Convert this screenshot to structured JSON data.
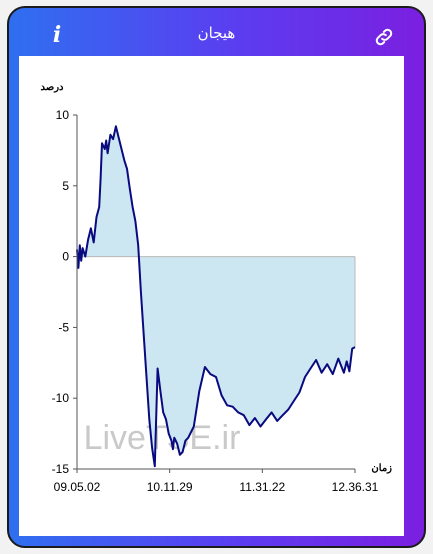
{
  "header": {
    "title": "هیجان",
    "info_label": "i",
    "info_icon": "info-icon",
    "link_icon": "link-icon"
  },
  "watermark": "LiveTSE.ir",
  "chart_data": {
    "type": "area",
    "ylabel": "درصد",
    "xlabel": "زمان",
    "ylim": [
      -15,
      10
    ],
    "yticks": [
      10,
      5,
      0,
      -5,
      -10,
      -15
    ],
    "xtick_labels": [
      "09.05.02",
      "10.11.29",
      "11.31.22",
      "12.36.31"
    ],
    "fill_color": "#cce7f2",
    "line_color": "#0a0a80",
    "grid": false,
    "series": [
      {
        "x": [
          0.0,
          0.005,
          0.01,
          0.015,
          0.02,
          0.03,
          0.04,
          0.05,
          0.055,
          0.06,
          0.07,
          0.08,
          0.085,
          0.09,
          0.1,
          0.105,
          0.11,
          0.12,
          0.13,
          0.14,
          0.15,
          0.16,
          0.17,
          0.18,
          0.19,
          0.2,
          0.21,
          0.22,
          0.23,
          0.24,
          0.25,
          0.26,
          0.27,
          0.28,
          0.29,
          0.3,
          0.31,
          0.32,
          0.33,
          0.34,
          0.345,
          0.35,
          0.36,
          0.37,
          0.38,
          0.39,
          0.4,
          0.42,
          0.44,
          0.46,
          0.48,
          0.5,
          0.52,
          0.54,
          0.56,
          0.58,
          0.6,
          0.62,
          0.64,
          0.66,
          0.68,
          0.7,
          0.72,
          0.74,
          0.76,
          0.78,
          0.8,
          0.82,
          0.84,
          0.86,
          0.88,
          0.9,
          0.92,
          0.94,
          0.96,
          0.97,
          0.98,
          0.99,
          1.0
        ],
        "y": [
          0.5,
          -0.8,
          0.8,
          -0.3,
          0.6,
          0.0,
          1.2,
          2.0,
          1.5,
          1.0,
          2.8,
          3.5,
          5.5,
          8.0,
          7.6,
          8.2,
          7.3,
          8.6,
          8.3,
          9.2,
          8.4,
          7.6,
          6.8,
          6.2,
          4.8,
          3.5,
          2.5,
          0.8,
          -2.5,
          -5.5,
          -8.5,
          -11.5,
          -13.5,
          -14.8,
          -7.9,
          -9.5,
          -11.0,
          -11.5,
          -12.5,
          -13.0,
          -13.6,
          -12.8,
          -13.2,
          -14.0,
          -13.8,
          -13.0,
          -12.8,
          -12.0,
          -9.5,
          -7.8,
          -8.3,
          -8.5,
          -9.8,
          -10.5,
          -10.6,
          -11.0,
          -11.2,
          -11.9,
          -11.4,
          -12.0,
          -11.5,
          -11.0,
          -11.6,
          -11.2,
          -10.8,
          -10.2,
          -9.6,
          -8.5,
          -7.9,
          -7.3,
          -8.2,
          -7.6,
          -8.3,
          -7.2,
          -8.2,
          -7.4,
          -8.1,
          -6.5,
          -6.4
        ]
      }
    ]
  }
}
